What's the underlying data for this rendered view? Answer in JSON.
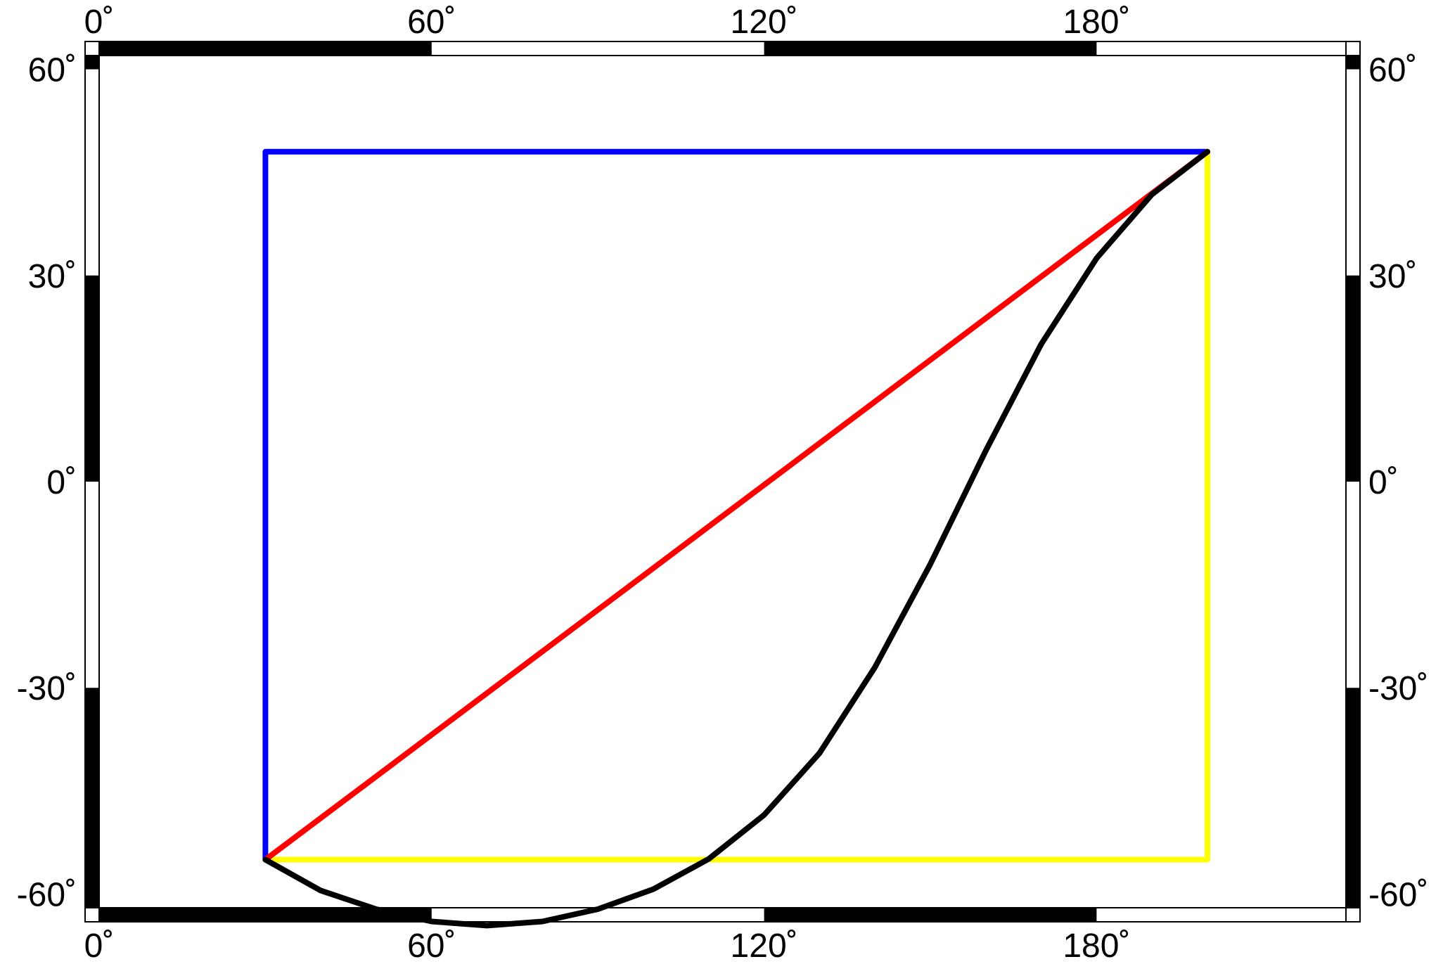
{
  "map": {
    "projection": "cylindrical",
    "frame_style": "fancy",
    "lon_range": [
      0,
      225
    ],
    "lat_range": [
      -62,
      62
    ],
    "lon_ticks": [
      {
        "value": 0,
        "label": "0˚"
      },
      {
        "value": 60,
        "label": "60˚"
      },
      {
        "value": 120,
        "label": "120˚"
      },
      {
        "value": 180,
        "label": "180˚"
      }
    ],
    "lat_ticks": [
      {
        "value": 60,
        "label": "60˚"
      },
      {
        "value": 30,
        "label": "30˚"
      },
      {
        "value": 0,
        "label": "0˚"
      },
      {
        "value": -30,
        "label": "-30˚"
      },
      {
        "value": -60,
        "label": "-60˚"
      }
    ],
    "frame_lon_segments": [
      0,
      60,
      120,
      180,
      225
    ],
    "frame_lat_segments": [
      -62,
      -30,
      0,
      30,
      60,
      62
    ],
    "lines": [
      {
        "color": "#0000ff",
        "points": [
          [
            30,
            -55
          ],
          [
            30,
            48
          ],
          [
            200,
            48
          ]
        ]
      },
      {
        "color": "#ffff00",
        "points": [
          [
            30,
            -55
          ],
          [
            200,
            -55
          ],
          [
            200,
            48
          ]
        ]
      },
      {
        "color": "#ff0000",
        "points": [
          [
            30,
            -55
          ],
          [
            200,
            48
          ]
        ]
      },
      {
        "color": "#000000",
        "points": [
          [
            30,
            -55
          ],
          [
            40,
            -59.5
          ],
          [
            50,
            -62.2
          ],
          [
            60,
            -64.0
          ],
          [
            70,
            -64.6
          ],
          [
            80,
            -64.0
          ],
          [
            90,
            -62.2
          ],
          [
            100,
            -59.3
          ],
          [
            110,
            -54.9
          ],
          [
            120,
            -48.5
          ],
          [
            130,
            -39.5
          ],
          [
            140,
            -27.0
          ],
          [
            150,
            -12.0
          ],
          [
            160,
            4.5
          ],
          [
            170,
            20.0
          ],
          [
            180,
            32.5
          ],
          [
            190,
            41.8
          ],
          [
            200,
            48
          ]
        ]
      }
    ]
  }
}
